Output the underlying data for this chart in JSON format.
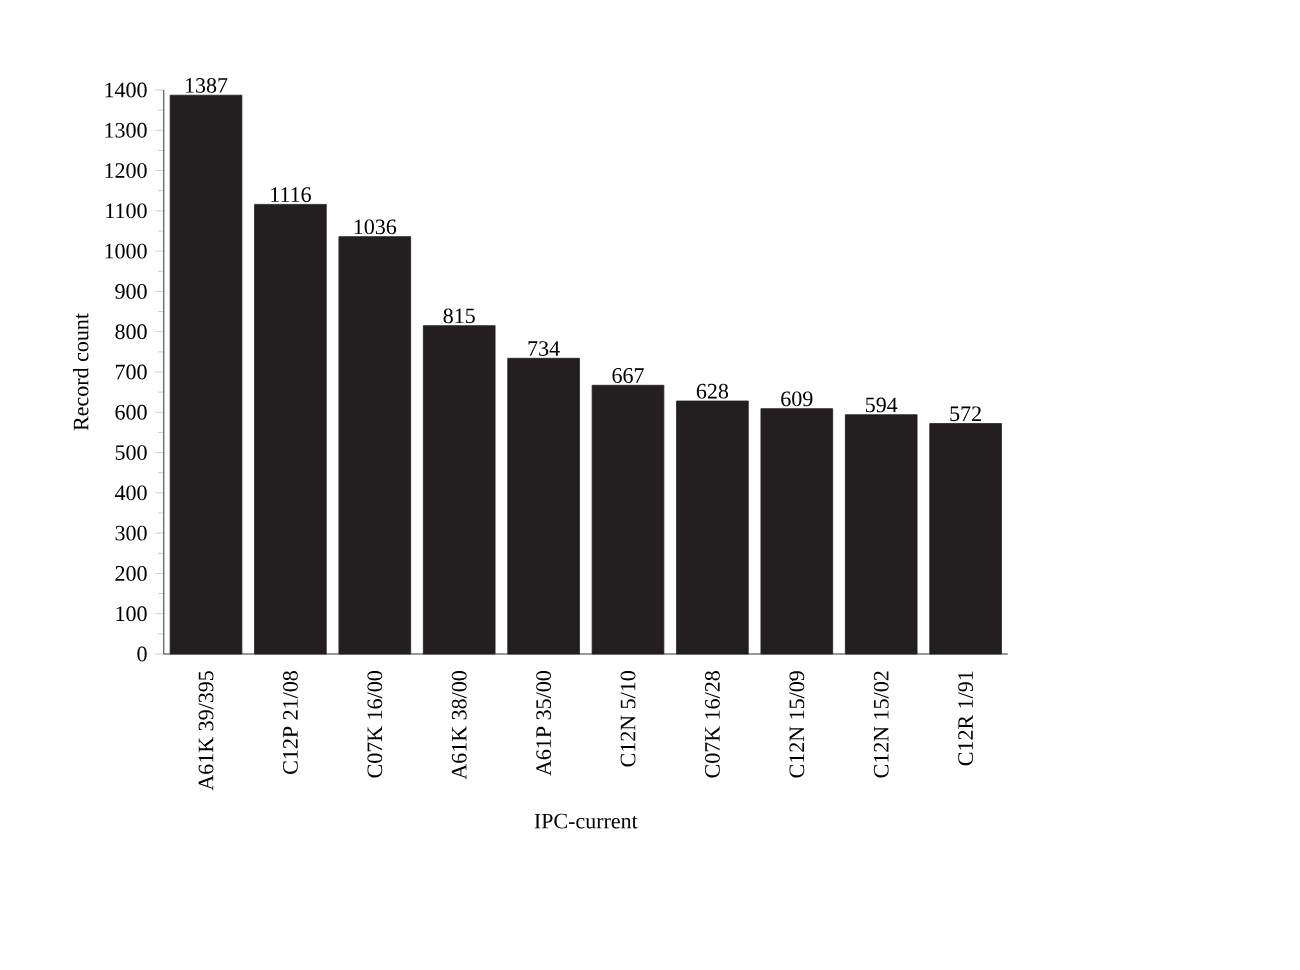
{
  "chart_data": {
    "type": "bar",
    "xlabel": "IPC-current",
    "ylabel": "Record count",
    "categories": [
      "A61K 39/395",
      "C12P 21/08",
      "C07K 16/00",
      "A61K 38/00",
      "A61P 35/00",
      "C12N 5/10",
      "C07K 16/28",
      "C12N 15/09",
      "C12N 15/02",
      "C12R 1/91"
    ],
    "values": [
      1387,
      1116,
      1036,
      815,
      734,
      667,
      628,
      609,
      594,
      572
    ],
    "color": "#231f20",
    "ylim": [
      0,
      1400
    ],
    "yticks": [
      0,
      100,
      200,
      300,
      400,
      500,
      600,
      700,
      800,
      900,
      1000,
      1100,
      1200,
      1300,
      1400
    ],
    "data_labels": true
  }
}
